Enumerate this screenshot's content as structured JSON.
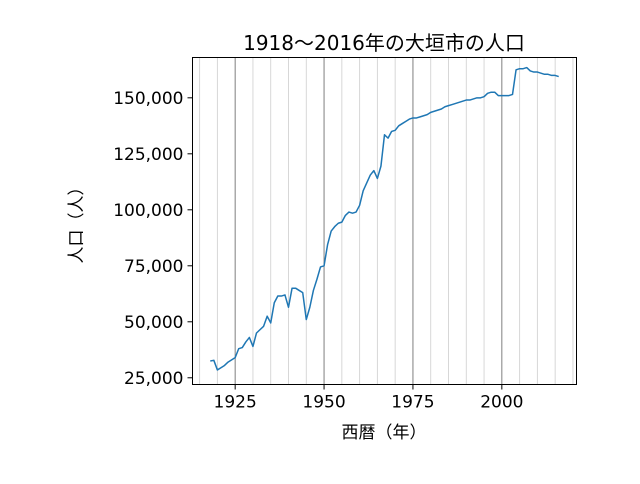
{
  "chart_data": {
    "type": "line",
    "title": "1918〜2016年の大垣市の人口",
    "xlabel": "西暦（年）",
    "ylabel": "人口（人）",
    "xlim": [
      1913,
      2021
    ],
    "ylim": [
      22000,
      168000
    ],
    "xticks": [
      1925,
      1950,
      1975,
      2000
    ],
    "xtick_labels": [
      "1925",
      "1950",
      "1975",
      "2000"
    ],
    "yticks": [
      25000,
      50000,
      75000,
      100000,
      125000,
      150000
    ],
    "ytick_labels": [
      "25,000",
      "50,000",
      "75,000",
      "100,000",
      "125,000",
      "150,000"
    ],
    "grid": "vertical lines every 5 years; darker every 25 years",
    "line_color": "#1f77b4",
    "series": [
      {
        "x": [
          1918,
          1919,
          1920,
          1921,
          1922,
          1923,
          1924,
          1925,
          1926,
          1927,
          1928,
          1929,
          1930,
          1931,
          1932,
          1933,
          1934,
          1935,
          1936,
          1937,
          1938,
          1939,
          1940,
          1941,
          1942,
          1943,
          1944,
          1945,
          1946,
          1947,
          1948,
          1949,
          1950,
          1951,
          1952,
          1953,
          1954,
          1955,
          1956,
          1957,
          1958,
          1959,
          1960,
          1961,
          1962,
          1963,
          1964,
          1965,
          1966,
          1967,
          1968,
          1969,
          1970,
          1971,
          1972,
          1973,
          1974,
          1975,
          1976,
          1977,
          1978,
          1979,
          1980,
          1981,
          1982,
          1983,
          1984,
          1985,
          1986,
          1987,
          1988,
          1989,
          1990,
          1991,
          1992,
          1993,
          1994,
          1995,
          1996,
          1997,
          1998,
          1999,
          2000,
          2001,
          2002,
          2003,
          2004,
          2005,
          2006,
          2007,
          2008,
          2009,
          2010,
          2011,
          2012,
          2013,
          2014,
          2015,
          2016
        ],
        "y": [
          32500,
          32800,
          28500,
          29500,
          30500,
          32000,
          33000,
          34000,
          38000,
          38500,
          41000,
          43000,
          39000,
          45000,
          46500,
          48000,
          52500,
          49500,
          58500,
          61500,
          61500,
          62000,
          56500,
          65000,
          65000,
          64000,
          63000,
          51000,
          56500,
          64000,
          69000,
          74500,
          75000,
          84500,
          90500,
          92500,
          94000,
          94500,
          97500,
          99000,
          98500,
          99000,
          102000,
          108500,
          112000,
          115500,
          117500,
          114000,
          119500,
          133500,
          132000,
          135000,
          135500,
          137500,
          138500,
          139500,
          140500,
          141000,
          141000,
          141500,
          142000,
          142500,
          143500,
          144000,
          144500,
          145000,
          146000,
          146500,
          147000,
          147500,
          148000,
          148500,
          149000,
          149000,
          149500,
          150000,
          150000,
          150500,
          152000,
          152500,
          152500,
          151000,
          151000,
          151000,
          151000,
          151500,
          162500,
          163000,
          163000,
          163500,
          162000,
          161500,
          161500,
          161000,
          160500,
          160500,
          160000,
          160000,
          159500
        ]
      }
    ]
  }
}
